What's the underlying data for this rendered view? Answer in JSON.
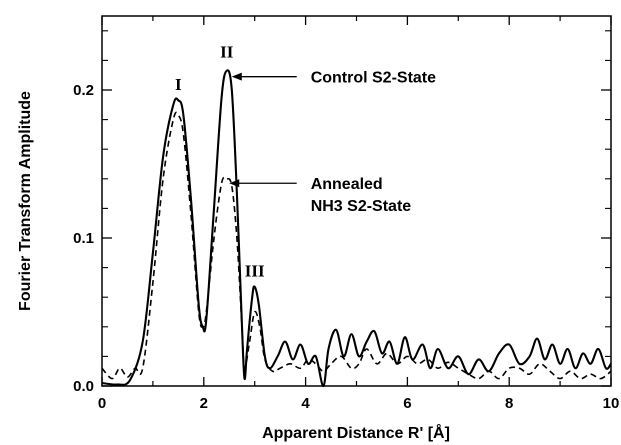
{
  "chart_data": {
    "type": "line",
    "title": "",
    "xlabel": "Apparent Distance R' [Å]",
    "ylabel": "Fourier Transform Amplitude",
    "xlim": [
      0,
      10
    ],
    "ylim": [
      0,
      0.25
    ],
    "x_ticks": [
      "0",
      "2",
      "4",
      "6",
      "8",
      "10"
    ],
    "y_ticks": [
      "0.0",
      "0.1",
      "0.2"
    ],
    "grid": false,
    "series": [
      {
        "style": "solid",
        "points": [
          [
            0,
            0.002
          ],
          [
            0.3,
            0.001
          ],
          [
            0.55,
            0.004
          ],
          [
            0.8,
            0.03
          ],
          [
            1.0,
            0.09
          ],
          [
            1.2,
            0.155
          ],
          [
            1.4,
            0.19
          ],
          [
            1.5,
            0.193
          ],
          [
            1.6,
            0.183
          ],
          [
            1.75,
            0.125
          ],
          [
            1.9,
            0.055
          ],
          [
            1.98,
            0.04
          ],
          [
            2.05,
            0.045
          ],
          [
            2.2,
            0.12
          ],
          [
            2.35,
            0.195
          ],
          [
            2.45,
            0.213
          ],
          [
            2.55,
            0.2
          ],
          [
            2.65,
            0.13
          ],
          [
            2.75,
            0.04
          ],
          [
            2.8,
            0.005
          ],
          [
            2.85,
            0.025
          ],
          [
            2.95,
            0.06
          ],
          [
            3.0,
            0.067
          ],
          [
            3.08,
            0.055
          ],
          [
            3.2,
            0.02
          ],
          [
            3.3,
            0.012
          ],
          [
            3.45,
            0.02
          ],
          [
            3.6,
            0.03
          ],
          [
            3.75,
            0.018
          ],
          [
            3.9,
            0.028
          ],
          [
            4.05,
            0.015
          ],
          [
            4.2,
            0.02
          ],
          [
            4.35,
            0.0
          ],
          [
            4.45,
            0.025
          ],
          [
            4.6,
            0.038
          ],
          [
            4.75,
            0.02
          ],
          [
            4.9,
            0.035
          ],
          [
            5.05,
            0.02
          ],
          [
            5.2,
            0.03
          ],
          [
            5.35,
            0.037
          ],
          [
            5.5,
            0.022
          ],
          [
            5.65,
            0.03
          ],
          [
            5.8,
            0.015
          ],
          [
            5.95,
            0.033
          ],
          [
            6.1,
            0.018
          ],
          [
            6.3,
            0.028
          ],
          [
            6.45,
            0.012
          ],
          [
            6.6,
            0.025
          ],
          [
            6.8,
            0.012
          ],
          [
            7.0,
            0.02
          ],
          [
            7.2,
            0.008
          ],
          [
            7.4,
            0.018
          ],
          [
            7.6,
            0.01
          ],
          [
            7.8,
            0.022
          ],
          [
            8.0,
            0.028
          ],
          [
            8.2,
            0.015
          ],
          [
            8.4,
            0.02
          ],
          [
            8.55,
            0.032
          ],
          [
            8.7,
            0.018
          ],
          [
            8.85,
            0.028
          ],
          [
            9.0,
            0.015
          ],
          [
            9.15,
            0.025
          ],
          [
            9.3,
            0.012
          ],
          [
            9.45,
            0.022
          ],
          [
            9.6,
            0.015
          ],
          [
            9.75,
            0.025
          ],
          [
            9.9,
            0.012
          ],
          [
            10.0,
            0.015
          ]
        ]
      },
      {
        "style": "dashed",
        "points": [
          [
            0,
            0.012
          ],
          [
            0.2,
            0.005
          ],
          [
            0.35,
            0.012
          ],
          [
            0.5,
            0.006
          ],
          [
            0.65,
            0.012
          ],
          [
            0.8,
            0.012
          ],
          [
            1.0,
            0.07
          ],
          [
            1.2,
            0.14
          ],
          [
            1.4,
            0.18
          ],
          [
            1.5,
            0.183
          ],
          [
            1.6,
            0.17
          ],
          [
            1.75,
            0.115
          ],
          [
            1.9,
            0.05
          ],
          [
            1.98,
            0.04
          ],
          [
            2.05,
            0.05
          ],
          [
            2.2,
            0.1
          ],
          [
            2.35,
            0.137
          ],
          [
            2.45,
            0.14
          ],
          [
            2.55,
            0.135
          ],
          [
            2.65,
            0.1
          ],
          [
            2.75,
            0.04
          ],
          [
            2.8,
            0.012
          ],
          [
            2.9,
            0.03
          ],
          [
            3.0,
            0.05
          ],
          [
            3.1,
            0.04
          ],
          [
            3.2,
            0.018
          ],
          [
            3.35,
            0.01
          ],
          [
            3.5,
            0.012
          ],
          [
            3.7,
            0.015
          ],
          [
            3.9,
            0.012
          ],
          [
            4.05,
            0.018
          ],
          [
            4.2,
            0.015
          ],
          [
            4.35,
            0.01
          ],
          [
            4.5,
            0.015
          ],
          [
            4.7,
            0.02
          ],
          [
            4.9,
            0.012
          ],
          [
            5.05,
            0.015
          ],
          [
            5.2,
            0.025
          ],
          [
            5.4,
            0.015
          ],
          [
            5.6,
            0.022
          ],
          [
            5.8,
            0.015
          ],
          [
            6.0,
            0.02
          ],
          [
            6.2,
            0.015
          ],
          [
            6.4,
            0.018
          ],
          [
            6.6,
            0.012
          ],
          [
            6.8,
            0.016
          ],
          [
            7.0,
            0.012
          ],
          [
            7.2,
            0.008
          ],
          [
            7.4,
            0.005
          ],
          [
            7.6,
            0.01
          ],
          [
            7.8,
            0.005
          ],
          [
            8.0,
            0.012
          ],
          [
            8.2,
            0.012
          ],
          [
            8.4,
            0.008
          ],
          [
            8.6,
            0.015
          ],
          [
            8.8,
            0.01
          ],
          [
            9.0,
            0.005
          ],
          [
            9.2,
            0.01
          ],
          [
            9.4,
            0.005
          ],
          [
            9.6,
            0.008
          ],
          [
            9.8,
            0.005
          ],
          [
            10.0,
            0.01
          ]
        ]
      }
    ],
    "peak_labels": [
      {
        "text": "I",
        "x": 1.5,
        "y": 0.2
      },
      {
        "text": "II",
        "x": 2.45,
        "y": 0.222
      },
      {
        "text": "III",
        "x": 3.0,
        "y": 0.074
      }
    ],
    "annotations": [
      {
        "lines": [
          "Control S2-State"
        ],
        "target_x": 2.55,
        "target_y": 0.209,
        "text_x": 4.1,
        "text_y": 0.209
      },
      {
        "lines": [
          "Annealed",
          "NH3 S2-State"
        ],
        "target_x": 2.5,
        "target_y": 0.137,
        "text_x": 4.1,
        "text_y": 0.137
      }
    ],
    "colors": {
      "line": "#000000",
      "background": "#ffffff"
    }
  }
}
